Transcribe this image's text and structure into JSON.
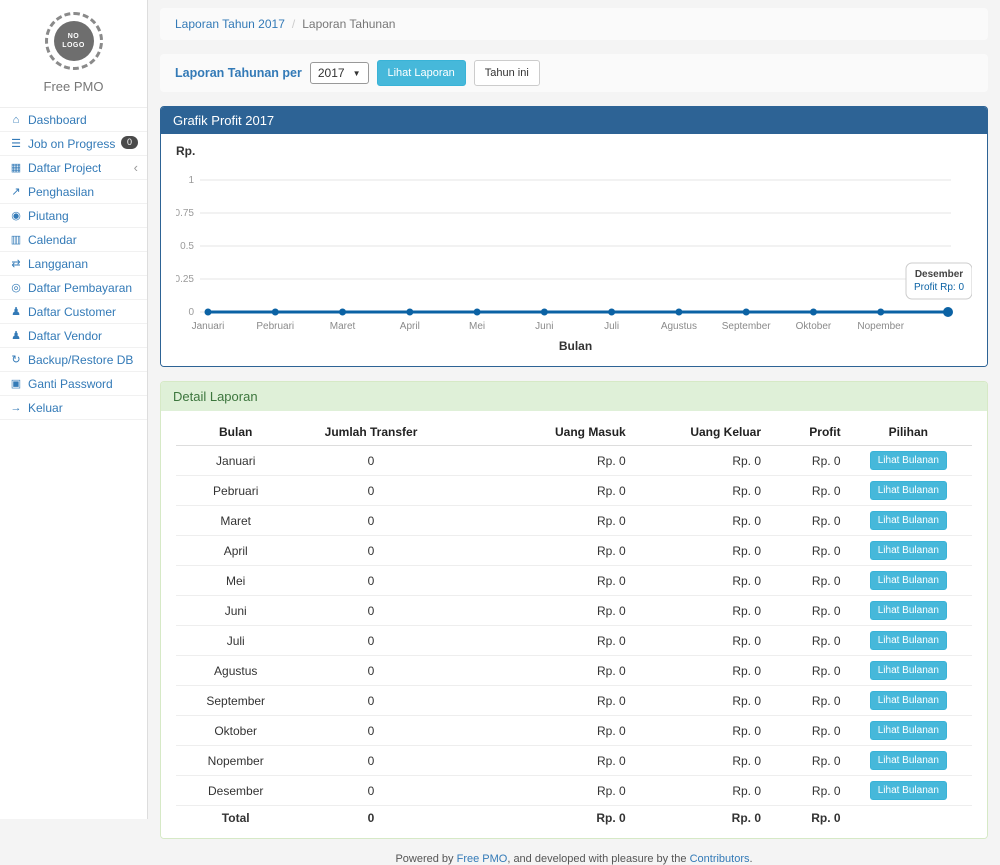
{
  "colors": {
    "accent": "#337ab7",
    "info_button": "#46b8da",
    "panel_primary": "#2d6395",
    "success_bg": "#dff0d8",
    "success_text": "#3c763d",
    "chart_line": "#0b62a4"
  },
  "sidebar": {
    "logo_text": "NO\nLOGO",
    "brand": "Free PMO",
    "items": [
      {
        "label": "Dashboard",
        "icon": "dashboard-icon",
        "glyph": "⌂"
      },
      {
        "label": "Job on Progress",
        "icon": "tasks-icon",
        "glyph": "☰",
        "badge": "0"
      },
      {
        "label": "Daftar Project",
        "icon": "table-icon",
        "glyph": "▦",
        "chevron": true
      },
      {
        "label": "Penghasilan",
        "icon": "line-chart-icon",
        "glyph": "↗"
      },
      {
        "label": "Piutang",
        "icon": "money-icon",
        "glyph": "◉"
      },
      {
        "label": "Calendar",
        "icon": "calendar-icon",
        "glyph": "▥"
      },
      {
        "label": "Langganan",
        "icon": "exchange-icon",
        "glyph": "⇄"
      },
      {
        "label": "Daftar Pembayaran",
        "icon": "payment-icon",
        "glyph": "◎"
      },
      {
        "label": "Daftar Customer",
        "icon": "users-icon",
        "glyph": "♟"
      },
      {
        "label": "Daftar Vendor",
        "icon": "users-icon",
        "glyph": "♟"
      },
      {
        "label": "Backup/Restore DB",
        "icon": "backup-icon",
        "glyph": "↻"
      },
      {
        "label": "Ganti Password",
        "icon": "lock-icon",
        "glyph": "▣"
      },
      {
        "label": "Keluar",
        "icon": "sign-out-icon",
        "glyph": "→"
      }
    ]
  },
  "breadcrumb": {
    "link": "Laporan Tahun 2017",
    "separator": "/",
    "current": "Laporan Tahunan"
  },
  "filter": {
    "label": "Laporan Tahunan per",
    "year": "2017",
    "submit_label": "Lihat Laporan",
    "this_year_label": "Tahun ini"
  },
  "chart_panel": {
    "title": "Grafik Profit 2017"
  },
  "chart_data": {
    "type": "line",
    "title": "Grafik Profit 2017",
    "x": [
      "Januari",
      "Pebruari",
      "Maret",
      "April",
      "Mei",
      "Juni",
      "Juli",
      "Agustus",
      "September",
      "Oktober",
      "Nopember",
      "Desember"
    ],
    "series": [
      {
        "name": "Profit",
        "values": [
          0,
          0,
          0,
          0,
          0,
          0,
          0,
          0,
          0,
          0,
          0,
          0
        ]
      }
    ],
    "xlabel": "Bulan",
    "ylabel": "Rp.",
    "ylim": [
      0,
      1
    ],
    "yticks": [
      0,
      0.25,
      0.5,
      0.75,
      1
    ],
    "grid": true,
    "legend": false,
    "tooltip": {
      "label": "Desember",
      "value": "Profit Rp: 0"
    }
  },
  "detail": {
    "title": "Detail Laporan",
    "columns": [
      "Bulan",
      "Jumlah Transfer",
      "Uang Masuk",
      "Uang Keluar",
      "Profit",
      "Pilihan"
    ],
    "action_label": "Lihat Bulanan",
    "rows": [
      {
        "bulan": "Januari",
        "jumlah_transfer": "0",
        "uang_masuk": "Rp. 0",
        "uang_keluar": "Rp. 0",
        "profit": "Rp. 0"
      },
      {
        "bulan": "Pebruari",
        "jumlah_transfer": "0",
        "uang_masuk": "Rp. 0",
        "uang_keluar": "Rp. 0",
        "profit": "Rp. 0"
      },
      {
        "bulan": "Maret",
        "jumlah_transfer": "0",
        "uang_masuk": "Rp. 0",
        "uang_keluar": "Rp. 0",
        "profit": "Rp. 0"
      },
      {
        "bulan": "April",
        "jumlah_transfer": "0",
        "uang_masuk": "Rp. 0",
        "uang_keluar": "Rp. 0",
        "profit": "Rp. 0"
      },
      {
        "bulan": "Mei",
        "jumlah_transfer": "0",
        "uang_masuk": "Rp. 0",
        "uang_keluar": "Rp. 0",
        "profit": "Rp. 0"
      },
      {
        "bulan": "Juni",
        "jumlah_transfer": "0",
        "uang_masuk": "Rp. 0",
        "uang_keluar": "Rp. 0",
        "profit": "Rp. 0"
      },
      {
        "bulan": "Juli",
        "jumlah_transfer": "0",
        "uang_masuk": "Rp. 0",
        "uang_keluar": "Rp. 0",
        "profit": "Rp. 0"
      },
      {
        "bulan": "Agustus",
        "jumlah_transfer": "0",
        "uang_masuk": "Rp. 0",
        "uang_keluar": "Rp. 0",
        "profit": "Rp. 0"
      },
      {
        "bulan": "September",
        "jumlah_transfer": "0",
        "uang_masuk": "Rp. 0",
        "uang_keluar": "Rp. 0",
        "profit": "Rp. 0"
      },
      {
        "bulan": "Oktober",
        "jumlah_transfer": "0",
        "uang_masuk": "Rp. 0",
        "uang_keluar": "Rp. 0",
        "profit": "Rp. 0"
      },
      {
        "bulan": "Nopember",
        "jumlah_transfer": "0",
        "uang_masuk": "Rp. 0",
        "uang_keluar": "Rp. 0",
        "profit": "Rp. 0"
      },
      {
        "bulan": "Desember",
        "jumlah_transfer": "0",
        "uang_masuk": "Rp. 0",
        "uang_keluar": "Rp. 0",
        "profit": "Rp. 0"
      }
    ],
    "total": {
      "bulan": "Total",
      "jumlah_transfer": "0",
      "uang_masuk": "Rp. 0",
      "uang_keluar": "Rp. 0",
      "profit": "Rp. 0"
    }
  },
  "footer": {
    "prefix": "Powered by ",
    "link1": "Free PMO",
    "middle": ", and developed with pleasure by the ",
    "link2": "Contributors",
    "suffix": "."
  }
}
